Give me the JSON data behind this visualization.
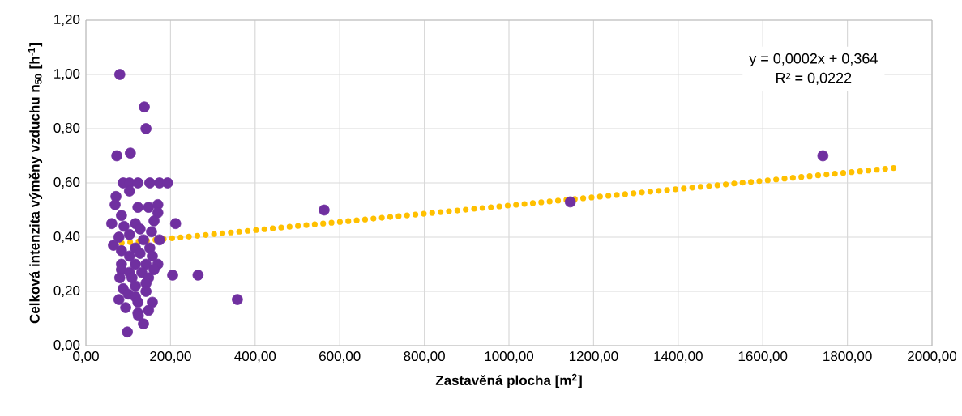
{
  "chart_data": {
    "type": "scatter",
    "xlabel": "Zastavěná plocha [m$^{2}$]",
    "ylabel": "Celková intenzita výměny vzduchu n$_{50}$ [h$^{-1}$]",
    "annotations": [
      "y = 0,0002x + 0,364",
      "R² = 0,0222"
    ],
    "xlim": [
      0,
      2000
    ],
    "ylim": [
      0,
      1.2
    ],
    "xticks": [
      {
        "value": 0,
        "label": "0,00"
      },
      {
        "value": 200,
        "label": "200,00"
      },
      {
        "value": 400,
        "label": "400,00"
      },
      {
        "value": 600,
        "label": "600,00"
      },
      {
        "value": 800,
        "label": "800,00"
      },
      {
        "value": 1000,
        "label": "1000,00"
      },
      {
        "value": 1200,
        "label": "1200,00"
      },
      {
        "value": 1400,
        "label": "1400,00"
      },
      {
        "value": 1600,
        "label": "1600,00"
      },
      {
        "value": 1800,
        "label": "1800,00"
      },
      {
        "value": 2000,
        "label": "2000,00"
      }
    ],
    "yticks": [
      {
        "value": 0,
        "label": "0,00"
      },
      {
        "value": 0.2,
        "label": "0,20"
      },
      {
        "value": 0.4,
        "label": "0,40"
      },
      {
        "value": 0.6,
        "label": "0,60"
      },
      {
        "value": 0.8,
        "label": "0,80"
      },
      {
        "value": 1.0,
        "label": "1,00"
      },
      {
        "value": 1.2,
        "label": "1,20"
      }
    ],
    "grid": true,
    "series": [
      {
        "color": "#7030a0",
        "marker": "circle",
        "x": [
          80,
          138,
          142,
          73,
          105,
          88,
          103,
          123,
          151,
          174,
          193,
          71,
          69,
          103,
          123,
          148,
          170,
          170,
          84,
          61,
          212,
          90,
          117,
          161,
          128,
          155,
          78,
          103,
          136,
          174,
          65,
          84,
          117,
          151,
          103,
          128,
          157,
          84,
          117,
          142,
          170,
          84,
          103,
          132,
          161,
          80,
          109,
          148,
          88,
          117,
          142,
          142,
          100,
          78,
          117,
          94,
          123,
          157,
          148,
          123,
          136,
          98,
          124,
          358,
          563,
          1145,
          1742,
          205,
          265
        ],
        "values": [
          1.0,
          0.88,
          0.8,
          0.7,
          0.71,
          0.6,
          0.6,
          0.6,
          0.6,
          0.6,
          0.6,
          0.55,
          0.52,
          0.57,
          0.51,
          0.51,
          0.52,
          0.49,
          0.48,
          0.45,
          0.45,
          0.44,
          0.45,
          0.46,
          0.43,
          0.42,
          0.4,
          0.41,
          0.39,
          0.39,
          0.37,
          0.35,
          0.36,
          0.36,
          0.33,
          0.34,
          0.33,
          0.3,
          0.3,
          0.3,
          0.3,
          0.28,
          0.27,
          0.27,
          0.28,
          0.25,
          0.25,
          0.25,
          0.21,
          0.22,
          0.23,
          0.2,
          0.19,
          0.17,
          0.18,
          0.14,
          0.16,
          0.16,
          0.13,
          0.12,
          0.08,
          0.05,
          0.11,
          0.17,
          0.5,
          0.53,
          0.7,
          0.26,
          0.26
        ]
      },
      {
        "type": "line",
        "color": "#ffc000",
        "line_style": "dotted",
        "marker": "none",
        "x": [
          65,
          1910
        ],
        "values": [
          0.375,
          0.655
        ]
      }
    ]
  }
}
